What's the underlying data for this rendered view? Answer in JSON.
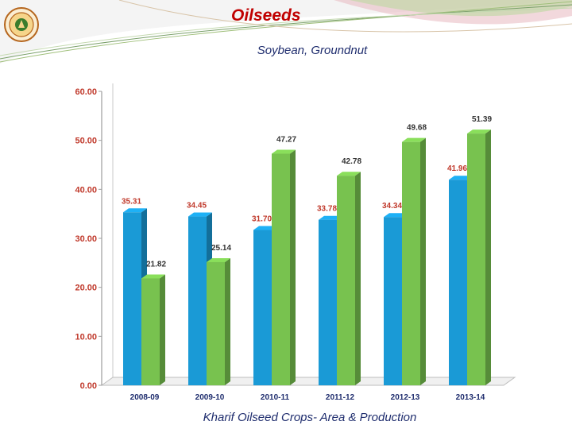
{
  "slide": {
    "title": "Oilseeds",
    "subtitle": "Soybean, Groundnut",
    "caption": "Kharif  Oilseed Crops- Area & Production"
  },
  "logo": {
    "icon": "university-emblem-icon"
  },
  "colors": {
    "area_bar": "#1a9ad6",
    "production_bar": "#78c24f",
    "area_label": "#c0392b",
    "production_label": "#333333",
    "axis_label": "#c0392b",
    "title": "#c00000",
    "text": "#1f2d6e"
  },
  "chart_data": {
    "type": "bar",
    "title": "",
    "xlabel": "",
    "ylabel": "",
    "ylim": [
      0,
      60
    ],
    "ytick_labels": [
      "0.00",
      "10.00",
      "20.00",
      "30.00",
      "40.00",
      "50.00",
      "60.00"
    ],
    "categories": [
      "2008-09",
      "2009-10",
      "2010-11",
      "2011-12",
      "2012-13",
      "2013-14"
    ],
    "series": [
      {
        "name": "Area",
        "values": [
          35.31,
          34.45,
          31.7,
          33.78,
          34.34,
          41.96
        ],
        "labels": [
          "35.31",
          "34.45",
          "31.70",
          "33.78",
          "34.34",
          "41.96"
        ]
      },
      {
        "name": "Production",
        "values": [
          21.82,
          25.14,
          47.27,
          42.78,
          49.68,
          51.39
        ],
        "labels": [
          "21.82",
          "25.14",
          "47.27",
          "42.78",
          "49.68",
          "51.39"
        ]
      }
    ],
    "legend": "none",
    "grid": false
  }
}
